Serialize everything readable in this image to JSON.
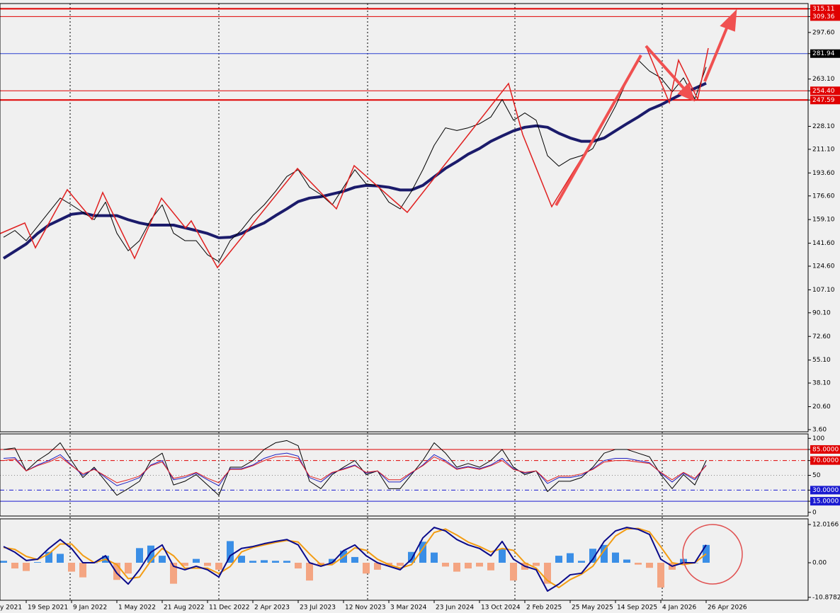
{
  "chart_data": [
    {
      "type": "line",
      "ylim": [
        2,
        319
      ],
      "yticks": [
        {
          "value": 315.11,
          "label": "315.11",
          "line_color": "#e00000",
          "line_dash": "solid",
          "line_width": 2,
          "boxed": true
        },
        {
          "value": 309.36,
          "label": "309.36",
          "line_color": "#e00000",
          "line_dash": "solid",
          "line_width": 1,
          "boxed": true
        },
        {
          "value": 297.6,
          "label": "297.60"
        },
        {
          "value": 281.94,
          "label": "281.94",
          "line_color": "#2a3fd0",
          "line_dash": "solid",
          "line_width": 1,
          "boxed": true,
          "box_color": "#000000"
        },
        {
          "value": 263.1,
          "label": "263.10"
        },
        {
          "value": 254.4,
          "label": "254.40",
          "line_color": "#e00000",
          "line_dash": "solid",
          "line_width": 1,
          "boxed": true
        },
        {
          "value": 247.59,
          "label": "247.59",
          "line_color": "#e00000",
          "line_dash": "solid",
          "line_width": 2,
          "boxed": true
        },
        {
          "value": 228.1,
          "label": "228.10"
        },
        {
          "value": 211.1,
          "label": "211.10"
        },
        {
          "value": 193.6,
          "label": "193.60"
        },
        {
          "value": 176.6,
          "label": "176.60"
        },
        {
          "value": 159.1,
          "label": "159.10"
        },
        {
          "value": 141.6,
          "label": "141.60"
        },
        {
          "value": 124.6,
          "label": "124.60"
        },
        {
          "value": 107.1,
          "label": "107.10"
        },
        {
          "value": 90.1,
          "label": "90.10"
        },
        {
          "value": 72.6,
          "label": "72.60"
        },
        {
          "value": 55.1,
          "label": "55.10"
        },
        {
          "value": 38.1,
          "label": "38.10"
        },
        {
          "value": 20.6,
          "label": "20.60"
        },
        {
          "value": 3.6,
          "label": "3.60"
        }
      ],
      "series": [
        {
          "color": "#1b1b6b",
          "width": 4,
          "values": [
            null,
            null,
            130.4,
            135.7,
            141,
            148.8,
            155,
            159,
            163,
            164,
            162,
            162,
            162,
            159,
            156.6,
            155,
            155,
            155,
            153,
            151,
            148.8,
            145.6,
            146,
            148.8,
            153,
            156.6,
            162,
            167,
            172.4,
            175,
            176,
            178,
            180,
            183,
            184.4,
            184,
            183,
            181,
            181,
            184.4,
            190.7,
            197,
            202,
            207.5,
            211.7,
            217,
            221,
            224.8,
            227.4,
            228.5,
            227.4,
            223,
            219.5,
            217,
            217,
            219.5,
            224.8,
            230,
            235,
            240.5,
            244,
            248.4,
            252.6,
            256.2,
            260
          ]
        },
        {
          "color": "#000000",
          "width": 1,
          "values": [
            null,
            null,
            146,
            151,
            143.5,
            154,
            164.5,
            175,
            170,
            164.5,
            159,
            172,
            149,
            136,
            143.5,
            159,
            170,
            149,
            143.5,
            143.5,
            133,
            128,
            143.5,
            151.4,
            162,
            170,
            180,
            191,
            196,
            183,
            177.6,
            170,
            183,
            196,
            185.5,
            184.4,
            172,
            167,
            180,
            196,
            214,
            227,
            225,
            227,
            230,
            235,
            248,
            232.6,
            238,
            232.6,
            206.4,
            198.6,
            203.8,
            206.4,
            211.7,
            227.4,
            243,
            261.5,
            277.2,
            269,
            264,
            253.6,
            264,
            248.4,
            272
          ]
        }
      ]
    },
    {
      "type": "line",
      "ylim": [
        -5,
        106
      ],
      "yticks": [
        100,
        {
          "value": 85,
          "label": "85.0000",
          "line_color": "#e00000",
          "line_dash": "solid",
          "line_width": 1,
          "boxed": true
        },
        {
          "value": 70,
          "label": "70.0000",
          "line_color": "#e00000",
          "line_dash": "dashdot",
          "line_width": 1,
          "boxed": true
        },
        {
          "value": 50,
          "label": "50",
          "line_color": "#888888",
          "line_dash": "dot",
          "line_width": 1
        },
        {
          "value": 30,
          "label": "30.0000",
          "line_color": "#1a1ad0",
          "line_dash": "dashdot",
          "line_width": 1,
          "boxed": true
        },
        {
          "value": 15,
          "label": "15.0000",
          "line_color": "#1a1ad0",
          "line_dash": "solid",
          "line_width": 1,
          "boxed": true
        },
        0
      ],
      "series": [
        {
          "color": "#000000",
          "width": 1,
          "values": [
            null,
            null,
            85,
            87,
            56,
            70,
            80,
            94,
            70,
            47,
            61,
            42,
            23,
            32,
            42,
            70,
            80,
            37,
            42,
            51,
            37,
            23,
            61,
            61,
            70,
            85,
            94,
            97,
            90,
            42,
            32,
            51,
            61,
            70,
            51,
            56,
            32,
            32,
            51,
            70,
            94,
            80,
            61,
            66,
            61,
            70,
            85,
            61,
            51,
            56,
            28,
            42,
            42,
            47,
            61,
            80,
            85,
            85,
            80,
            75,
            51,
            32,
            51,
            37,
            70
          ]
        },
        {
          "color": "#2020c0",
          "width": 1,
          "values": [
            null,
            null,
            73,
            74,
            56,
            64,
            70,
            78,
            64,
            50,
            59,
            47,
            36,
            41,
            47,
            64,
            70,
            44,
            47,
            53,
            44,
            36,
            59,
            59,
            64,
            73,
            78,
            80,
            76,
            47,
            41,
            53,
            59,
            64,
            53,
            56,
            41,
            41,
            53,
            64,
            78,
            70,
            59,
            62,
            59,
            64,
            73,
            59,
            53,
            56,
            39,
            47,
            47,
            50,
            59,
            70,
            73,
            73,
            70,
            67,
            53,
            41,
            53,
            44,
            64
          ]
        },
        {
          "color": "#e02020",
          "width": 1,
          "values": [
            null,
            null,
            70,
            72,
            56,
            63,
            68,
            75,
            63,
            52,
            58,
            49,
            40,
            44,
            49,
            63,
            68,
            46,
            49,
            54,
            46,
            40,
            58,
            58,
            63,
            70,
            75,
            76,
            73,
            49,
            44,
            54,
            58,
            63,
            54,
            56,
            44,
            44,
            54,
            63,
            75,
            68,
            58,
            61,
            58,
            63,
            70,
            58,
            54,
            56,
            42,
            49,
            49,
            52,
            58,
            68,
            70,
            70,
            68,
            66,
            54,
            44,
            54,
            46,
            63
          ]
        }
      ]
    },
    {
      "type": "line",
      "ylim": [
        -11.8,
        13.8
      ],
      "yticks": [
        12.0166,
        {
          "value": 0,
          "label": "0.00"
        },
        -10.8782
      ],
      "categories": [
        "y 2021",
        null,
        null,
        null,
        "19 Sep 2021",
        null,
        null,
        null,
        "9 Jan 2022",
        null,
        null,
        null,
        "1 May 2022",
        null,
        null,
        null,
        "21 Aug 2022",
        null,
        null,
        null,
        "11 Dec 2022",
        null,
        null,
        null,
        "2 Apr 2023",
        null,
        null,
        null,
        "23 Jul 2023",
        null,
        null,
        null,
        "12 Nov 2023",
        null,
        null,
        null,
        "3 Mar 2024",
        null,
        null,
        null,
        "23 Jun 2024",
        null,
        null,
        null,
        "13 Oct 2024",
        null,
        null,
        null,
        "2 Feb 2025",
        null,
        null,
        null,
        "25 May 2025",
        null,
        null,
        null,
        "14 Sep 2025",
        null,
        null,
        null,
        "4 Jan 2026",
        null,
        null,
        null,
        "26 Apr 2026"
      ],
      "series": [
        {
          "style": "bar",
          "color": "#3a8ee6",
          "neg_color": "#f4a582",
          "values": [
            null,
            null,
            0.6,
            -1.8,
            -2.6,
            0.2,
            3.4,
            2.8,
            -2.8,
            -4.6,
            0,
            2.2,
            -5.4,
            -3.4,
            4.6,
            5.4,
            2.2,
            -6.6,
            -1,
            1.2,
            -1,
            -2.2,
            6.8,
            2.2,
            0.6,
            0.8,
            0.6,
            0.6,
            -1.8,
            -5.6,
            -1,
            1.2,
            3.8,
            1.8,
            -3.4,
            -2.2,
            -1,
            -1,
            3.4,
            6.6,
            3.2,
            -1.2,
            -2.8,
            -1.8,
            -1.2,
            -2.4,
            4.4,
            -5.6,
            -2.2,
            -1,
            -6.6,
            2.2,
            3,
            0.6,
            4.4,
            5.6,
            3.2,
            1,
            -0.6,
            -1.6,
            -7.8,
            -2.2,
            1.2,
            0,
            5.6
          ]
        },
        {
          "color": "#f39c12",
          "width": 2,
          "values": [
            null,
            null,
            4.8,
            4.2,
            2,
            1,
            2.8,
            5.9,
            5.9,
            2.3,
            0,
            1.1,
            -0.6,
            -5,
            -4.5,
            0.6,
            4.5,
            2.2,
            -1.7,
            -1.7,
            -1.7,
            -3.4,
            -1.2,
            3.4,
            4.8,
            5.6,
            6.4,
            7,
            6.5,
            2.8,
            -0.6,
            -0.6,
            1.9,
            4.7,
            3.9,
            1.1,
            -0.6,
            -1.7,
            -0.6,
            4.5,
            9.5,
            10.6,
            8.7,
            6.5,
            5.1,
            3.4,
            4.5,
            3.9,
            0,
            -1.7,
            -5.6,
            -7.8,
            -5.3,
            -3.6,
            -1.1,
            3.9,
            8.4,
            10.6,
            10.8,
            9.7,
            5,
            0,
            -0.6,
            0,
            2.8
          ]
        },
        {
          "color": "#0a0a8a",
          "width": 2,
          "values": [
            null,
            null,
            5.1,
            3.3,
            0.7,
            1.1,
            4.5,
            7.3,
            4.5,
            0,
            0,
            2.2,
            -3.3,
            -6.7,
            -2.2,
            3.3,
            5.6,
            -1.1,
            -2.2,
            -1.1,
            -2.2,
            -4.5,
            2.2,
            4.5,
            5.1,
            6,
            6.7,
            7.3,
            5.6,
            0,
            -1.1,
            0,
            3.8,
            5.6,
            2.2,
            0,
            -1.1,
            -2.2,
            1.1,
            7.8,
            11.1,
            10,
            7.3,
            5.6,
            4.5,
            2.2,
            6.7,
            1.1,
            -1.1,
            -2.2,
            -8.9,
            -6.7,
            -3.8,
            -3.3,
            1.1,
            6.7,
            10,
            11.1,
            10.5,
            8.9,
            1.1,
            -1.1,
            0,
            0,
            5.6
          ]
        }
      ]
    }
  ]
}
